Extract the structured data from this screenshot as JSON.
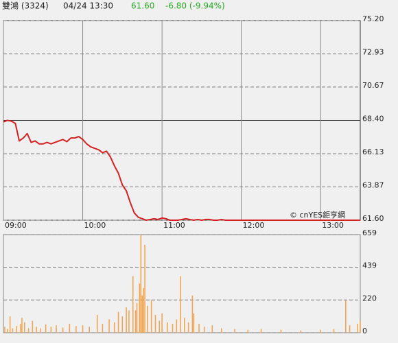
{
  "header": {
    "name": "雙鴻 (3324)",
    "time": "04/24 13:30",
    "price": "61.60",
    "change": "-6.80 (-9.94%)"
  },
  "watermark": "© cnYES鉅亨網",
  "chart_data": [
    {
      "type": "line",
      "color": "#d42020",
      "x": [
        "09:00",
        "09:03",
        "09:06",
        "09:09",
        "09:12",
        "09:15",
        "09:18",
        "09:21",
        "09:24",
        "09:27",
        "09:30",
        "09:33",
        "09:36",
        "09:39",
        "09:42",
        "09:45",
        "09:48",
        "09:51",
        "09:54",
        "09:57",
        "10:00",
        "10:03",
        "10:06",
        "10:09",
        "10:12",
        "10:15",
        "10:18",
        "10:21",
        "10:24",
        "10:27",
        "10:30",
        "10:33",
        "10:36",
        "10:39",
        "10:42",
        "10:45",
        "10:48",
        "10:51",
        "10:54",
        "10:57",
        "11:00",
        "11:03",
        "11:06",
        "11:09",
        "11:12",
        "11:15",
        "11:18",
        "11:21",
        "11:24",
        "11:27",
        "11:30",
        "11:33",
        "11:36",
        "11:39",
        "11:42",
        "11:45",
        "11:48",
        "11:51",
        "13:30"
      ],
      "values": [
        68.3,
        68.4,
        68.35,
        68.2,
        67.0,
        67.2,
        67.5,
        66.9,
        67.0,
        66.8,
        66.8,
        66.9,
        66.8,
        66.9,
        67.0,
        67.1,
        66.95,
        67.2,
        67.2,
        67.3,
        67.1,
        66.8,
        66.6,
        66.5,
        66.4,
        66.2,
        66.3,
        65.9,
        65.3,
        64.8,
        64.0,
        63.6,
        62.8,
        62.1,
        61.8,
        61.7,
        61.6,
        61.65,
        61.7,
        61.65,
        61.75,
        61.7,
        61.6,
        61.6,
        61.6,
        61.65,
        61.7,
        61.65,
        61.6,
        61.65,
        61.6,
        61.65,
        61.65,
        61.6,
        61.6,
        61.65,
        61.6,
        61.6,
        61.6
      ],
      "xlim": [
        "09:00",
        "13:30"
      ],
      "xticks": [
        "09:00",
        "10:00",
        "11:00",
        "12:00",
        "13:00"
      ],
      "ylim": [
        61.6,
        75.2
      ],
      "yticks": [
        {
          "value": 75.2,
          "label": "75.20"
        },
        72.93,
        70.67,
        {
          "value": 68.4,
          "label": "68.40"
        },
        66.13,
        63.87,
        {
          "value": 61.6,
          "label": "61.60"
        }
      ]
    },
    {
      "type": "bar",
      "color": "#f2a654",
      "x": [
        "09:01",
        "09:03",
        "09:05",
        "09:07",
        "09:10",
        "09:13",
        "09:14",
        "09:16",
        "09:19",
        "09:22",
        "09:25",
        "09:28",
        "09:32",
        "09:36",
        "09:40",
        "09:45",
        "09:50",
        "09:55",
        "10:00",
        "10:05",
        "10:11",
        "10:15",
        "10:20",
        "10:24",
        "10:27",
        "10:30",
        "10:33",
        "10:35",
        "10:38",
        "10:40",
        "10:41",
        "10:43",
        "10:44",
        "10:45",
        "10:46",
        "10:47",
        "10:49",
        "10:52",
        "10:55",
        "10:58",
        "11:00",
        "11:04",
        "11:08",
        "11:11",
        "11:14",
        "11:17",
        "11:20",
        "11:23",
        "11:24",
        "11:28",
        "11:32",
        "11:38",
        "11:45",
        "11:55",
        "12:05",
        "12:15",
        "12:30",
        "12:45",
        "13:00",
        "13:10",
        "13:19",
        "13:22",
        "13:28",
        "13:30"
      ],
      "values": [
        40,
        25,
        110,
        30,
        45,
        60,
        100,
        70,
        30,
        80,
        40,
        30,
        55,
        40,
        50,
        35,
        60,
        45,
        50,
        40,
        120,
        60,
        90,
        70,
        140,
        110,
        170,
        150,
        380,
        150,
        200,
        330,
        659,
        250,
        300,
        590,
        180,
        220,
        120,
        80,
        130,
        70,
        60,
        90,
        380,
        100,
        70,
        250,
        130,
        60,
        40,
        50,
        30,
        25,
        20,
        25,
        20,
        15,
        20,
        25,
        220,
        50,
        60,
        80
      ],
      "xlim": [
        "09:00",
        "13:30"
      ],
      "ylim": [
        0,
        659
      ],
      "yticks": [
        659,
        439,
        220,
        0
      ]
    }
  ]
}
